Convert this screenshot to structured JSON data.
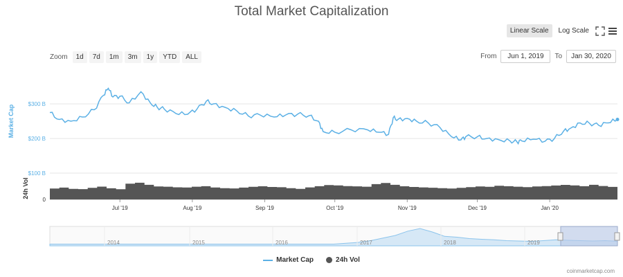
{
  "title": "Total Market Capitalization",
  "scale": {
    "linear": "Linear Scale",
    "log": "Log Scale"
  },
  "icons": {
    "fullscreen": "fullscreen-icon",
    "menu": "menu-icon"
  },
  "zoom": {
    "label": "Zoom",
    "buttons": [
      "1d",
      "7d",
      "1m",
      "3m",
      "1y",
      "YTD",
      "ALL"
    ]
  },
  "range": {
    "from_label": "From",
    "from_value": "Jun 1, 2019",
    "to_label": "To",
    "to_value": "Jan 30, 2020"
  },
  "legend": {
    "market_cap": "Market Cap",
    "vol": "24h Vol"
  },
  "credits": "coinmarketcap.com",
  "colors": {
    "market_cap": "#5bb0e5",
    "volume": "#555555",
    "navigator_fill": "#d6e8f6",
    "selection": "#b7c8e8"
  },
  "chart_data": [
    {
      "type": "line",
      "ylabel": "Market Cap",
      "yticks": [
        "$100 B",
        "$200 B",
        "$300 B"
      ],
      "ytick_values": [
        100,
        200,
        300
      ],
      "ylim": [
        100,
        400
      ],
      "xticks": [
        "Jul '19",
        "Aug '19",
        "Sep '19",
        "Oct '19",
        "Nov '19",
        "Dec '19",
        "Jan '20"
      ],
      "xtick_dates": [
        "2019-07-01",
        "2019-08-01",
        "2019-09-01",
        "2019-10-01",
        "2019-11-01",
        "2019-12-01",
        "2020-01-01"
      ],
      "x": [
        "2019-06-01",
        "2019-06-05",
        "2019-06-10",
        "2019-06-15",
        "2019-06-20",
        "2019-06-24",
        "2019-06-26",
        "2019-06-28",
        "2019-07-01",
        "2019-07-05",
        "2019-07-10",
        "2019-07-14",
        "2019-07-17",
        "2019-07-20",
        "2019-07-25",
        "2019-07-30",
        "2019-08-03",
        "2019-08-07",
        "2019-08-10",
        "2019-08-15",
        "2019-08-20",
        "2019-08-25",
        "2019-08-30",
        "2019-09-05",
        "2019-09-10",
        "2019-09-15",
        "2019-09-20",
        "2019-09-24",
        "2019-09-26",
        "2019-10-01",
        "2019-10-08",
        "2019-10-15",
        "2019-10-20",
        "2019-10-24",
        "2019-10-26",
        "2019-10-28",
        "2019-11-01",
        "2019-11-05",
        "2019-11-10",
        "2019-11-15",
        "2019-11-20",
        "2019-11-24",
        "2019-11-26",
        "2019-12-01",
        "2019-12-05",
        "2019-12-10",
        "2019-12-15",
        "2019-12-18",
        "2019-12-20",
        "2019-12-25",
        "2019-12-30",
        "2020-01-03",
        "2020-01-07",
        "2020-01-10",
        "2020-01-14",
        "2020-01-18",
        "2020-01-22",
        "2020-01-26",
        "2020-01-30"
      ],
      "series": [
        {
          "name": "Market Cap",
          "values": [
            275,
            255,
            250,
            262,
            283,
            325,
            345,
            320,
            322,
            303,
            335,
            303,
            290,
            285,
            272,
            270,
            285,
            308,
            300,
            290,
            280,
            265,
            268,
            262,
            268,
            270,
            266,
            250,
            220,
            218,
            225,
            225,
            218,
            212,
            260,
            255,
            258,
            250,
            245,
            232,
            205,
            196,
            205,
            205,
            200,
            197,
            193,
            190,
            193,
            198,
            192,
            200,
            222,
            230,
            245,
            244,
            238,
            245,
            255
          ]
        }
      ]
    },
    {
      "type": "bar",
      "ylabel": "24h Vol",
      "yticks": [
        "0"
      ],
      "note_period": "daily",
      "x_start": "2019-06-01",
      "x_end": "2020-01-30",
      "series": [
        {
          "name": "24h Vol",
          "values": [
            60,
            62,
            58,
            57,
            60,
            63,
            58,
            55,
            70,
            72,
            66,
            61,
            60,
            58,
            57,
            59,
            60,
            56,
            54,
            53,
            55,
            57,
            58,
            56,
            55,
            52,
            50,
            54,
            57,
            60,
            59,
            57,
            56,
            55,
            62,
            65,
            60,
            56,
            54,
            53,
            52,
            51,
            50,
            52,
            54,
            56,
            55,
            58,
            57,
            56,
            55,
            57,
            58,
            60,
            62,
            61,
            59,
            63,
            60,
            58
          ]
        }
      ]
    },
    {
      "type": "area",
      "name": "navigator",
      "xticks": [
        "2014",
        "2015",
        "2016",
        "2017",
        "2018",
        "2019"
      ],
      "values": [
        0.1,
        0.1,
        0.1,
        0.1,
        0.1,
        0.1,
        0.1,
        0.1,
        0.1,
        0.1,
        0.1,
        0.1,
        0.1,
        0.1,
        0.1,
        0.1,
        0.1,
        0.1,
        0.1,
        0.1,
        0.1,
        0.1,
        0.1,
        0.1,
        0.15,
        0.2,
        0.3,
        0.45,
        0.6,
        0.85,
        1.0,
        0.8,
        0.55,
        0.5,
        0.42,
        0.38,
        0.35,
        0.3,
        0.28,
        0.26,
        0.3,
        0.35,
        0.32,
        0.3,
        0.28,
        0.3,
        0.27
      ],
      "selection_start": "Jun 2019",
      "selection_end": "Jan 2020"
    }
  ]
}
